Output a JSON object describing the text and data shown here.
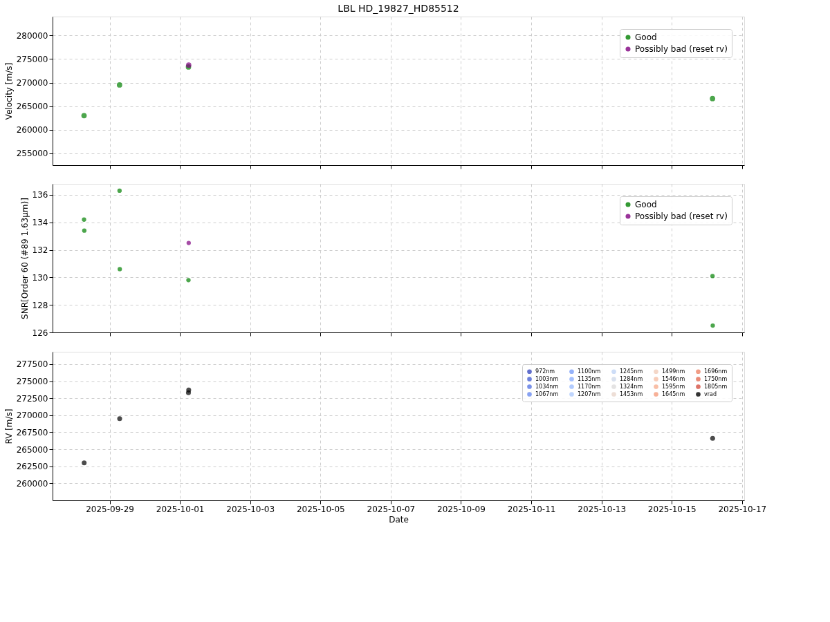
{
  "chart_data": [
    {
      "type": "scatter",
      "title": "LBL HD_19827_HD85512",
      "ylabel": "Velocity [m/s]",
      "xlim": [
        "2025-09-27T09:00",
        "2025-10-17T01:30"
      ],
      "ylim": [
        252510,
        283980
      ],
      "xticks": [
        {
          "value": "2025-09-29",
          "label": null
        },
        {
          "value": "2025-10-01",
          "label": null
        },
        {
          "value": "2025-10-03",
          "label": null
        },
        {
          "value": "2025-10-05",
          "label": null
        },
        {
          "value": "2025-10-07",
          "label": null
        },
        {
          "value": "2025-10-09",
          "label": null
        },
        {
          "value": "2025-10-11",
          "label": null
        },
        {
          "value": "2025-10-13",
          "label": null
        },
        {
          "value": "2025-10-15",
          "label": null
        },
        {
          "value": "2025-10-17",
          "label": null
        }
      ],
      "yticks": [
        255000,
        260000,
        265000,
        270000,
        275000,
        280000
      ],
      "grid": true,
      "legend": "top right",
      "marker": "circle",
      "tick_labels": "y",
      "series": [
        {
          "name": "Good",
          "color": "#008000",
          "x": [
            "2025-09-28T06:30",
            "2025-09-29T06:45",
            "2025-10-01T05:50",
            "2025-10-16T03:50"
          ],
          "values": [
            263000,
            269500,
            273300,
            266600
          ]
        },
        {
          "name": "Possibly bad (reset rv)",
          "color": "#800080",
          "x": [
            "2025-10-01T06:00"
          ],
          "values": [
            273700
          ]
        }
      ]
    },
    {
      "type": "scatter",
      "ylabel": "SNR[Order 60 (#89 1.63μm)]",
      "xlim": [
        "2025-09-27T09:00",
        "2025-10-17T01:30"
      ],
      "ylim": [
        126,
        136.8
      ],
      "xticks": [
        {
          "value": "2025-09-29",
          "label": null
        },
        {
          "value": "2025-10-01",
          "label": null
        },
        {
          "value": "2025-10-03",
          "label": null
        },
        {
          "value": "2025-10-05",
          "label": null
        },
        {
          "value": "2025-10-07",
          "label": null
        },
        {
          "value": "2025-10-09",
          "label": null
        },
        {
          "value": "2025-10-11",
          "label": null
        },
        {
          "value": "2025-10-13",
          "label": null
        },
        {
          "value": "2025-10-15",
          "label": null
        },
        {
          "value": "2025-10-17",
          "label": null
        }
      ],
      "yticks": [
        126,
        128,
        130,
        132,
        134,
        136
      ],
      "grid": true,
      "legend": "top right",
      "marker": "circle",
      "tick_labels": "y",
      "series": [
        {
          "name": "Good",
          "color": "#008000",
          "x": [
            "2025-09-28T06:30",
            "2025-09-28T06:40",
            "2025-09-29T06:45",
            "2025-09-29T06:55",
            "2025-10-01T05:50",
            "2025-10-16T03:50",
            "2025-10-16T04:00"
          ],
          "values": [
            134.2,
            133.4,
            136.3,
            130.6,
            129.8,
            130.1,
            126.5
          ]
        },
        {
          "name": "Possibly bad (reset rv)",
          "color": "#800080",
          "x": [
            "2025-10-01T06:00"
          ],
          "values": [
            132.5
          ]
        }
      ]
    },
    {
      "type": "scatter",
      "xlabel": "Date",
      "ylabel": "RV [m/s]",
      "xlim": [
        "2025-09-27T09:00",
        "2025-10-17T01:30"
      ],
      "ylim": [
        257490,
        279320
      ],
      "xticks": [
        {
          "value": "2025-09-29",
          "label": "2025-09-29"
        },
        {
          "value": "2025-10-01",
          "label": "2025-10-01"
        },
        {
          "value": "2025-10-03",
          "label": "2025-10-03"
        },
        {
          "value": "2025-10-05",
          "label": "2025-10-05"
        },
        {
          "value": "2025-10-07",
          "label": "2025-10-07"
        },
        {
          "value": "2025-10-09",
          "label": "2025-10-09"
        },
        {
          "value": "2025-10-11",
          "label": "2025-10-11"
        },
        {
          "value": "2025-10-13",
          "label": "2025-10-13"
        },
        {
          "value": "2025-10-15",
          "label": "2025-10-15"
        },
        {
          "value": "2025-10-17",
          "label": "2025-10-17"
        }
      ],
      "yticks": [
        260000,
        262500,
        265000,
        267500,
        270000,
        272500,
        275000,
        277500
      ],
      "grid": true,
      "legend": "top right",
      "marker": "circle",
      "x": [
        "2025-09-28T06:35",
        "2025-09-29T06:50",
        "2025-10-01T05:50",
        "2025-10-01T06:00",
        "2025-10-16T03:55"
      ],
      "series": [
        {
          "name": "972nm",
          "color": "#3b4cc0",
          "values": [
            null,
            null,
            null,
            null,
            null
          ]
        },
        {
          "name": "1003nm",
          "color": "#4961d2",
          "values": [
            null,
            null,
            null,
            null,
            null
          ]
        },
        {
          "name": "1034nm",
          "color": "#5977e3",
          "values": [
            null,
            null,
            null,
            null,
            null
          ]
        },
        {
          "name": "1067nm",
          "color": "#6a8bef",
          "values": [
            null,
            null,
            null,
            null,
            null
          ]
        },
        {
          "name": "1100nm",
          "color": "#7b9ff9",
          "values": [
            null,
            null,
            null,
            null,
            null
          ]
        },
        {
          "name": "1135nm",
          "color": "#8db0fe",
          "values": [
            null,
            null,
            null,
            null,
            null
          ]
        },
        {
          "name": "1170nm",
          "color": "#9ebeff",
          "values": [
            null,
            null,
            null,
            null,
            null
          ]
        },
        {
          "name": "1207nm",
          "color": "#afcafc",
          "values": [
            null,
            null,
            null,
            null,
            null
          ]
        },
        {
          "name": "1245nm",
          "color": "#c0d4f5",
          "values": [
            null,
            null,
            null,
            null,
            null
          ]
        },
        {
          "name": "1284nm",
          "color": "#cfdaea",
          "values": [
            null,
            null,
            null,
            null,
            null
          ]
        },
        {
          "name": "1324nm",
          "color": "#dddcdc",
          "values": [
            null,
            null,
            null,
            null,
            null
          ]
        },
        {
          "name": "1453nm",
          "color": "#e8d6cc",
          "values": [
            null,
            null,
            null,
            null,
            null
          ]
        },
        {
          "name": "1499nm",
          "color": "#f1cdba",
          "values": [
            null,
            null,
            null,
            null,
            null
          ]
        },
        {
          "name": "1546nm",
          "color": "#f6bfa6",
          "values": [
            null,
            null,
            null,
            null,
            null
          ]
        },
        {
          "name": "1595nm",
          "color": "#f7af91",
          "values": [
            null,
            null,
            null,
            null,
            null
          ]
        },
        {
          "name": "1645nm",
          "color": "#f59c7d",
          "values": [
            null,
            null,
            null,
            null,
            null
          ]
        },
        {
          "name": "1696nm",
          "color": "#ee8468",
          "values": [
            null,
            null,
            null,
            null,
            null
          ]
        },
        {
          "name": "1750nm",
          "color": "#e46e56",
          "values": [
            null,
            null,
            null,
            null,
            null
          ]
        },
        {
          "name": "1805nm",
          "color": "#d55042",
          "values": [
            null,
            null,
            null,
            null,
            null
          ]
        },
        {
          "name": "vrad",
          "color": "#000000",
          "values": [
            263000,
            269500,
            273300,
            273700,
            266600
          ]
        }
      ]
    }
  ]
}
